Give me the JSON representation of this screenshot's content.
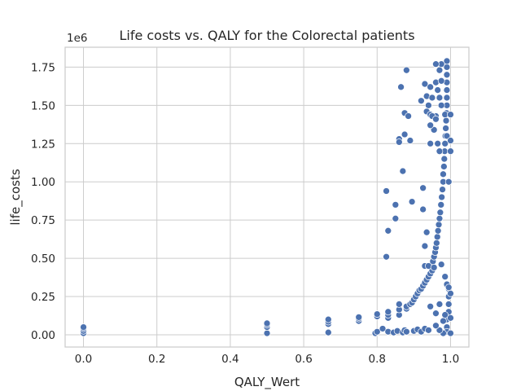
{
  "chart_data": {
    "type": "scatter",
    "title": "Life costs vs. QALY for the Colorectal patients",
    "xlabel": "QALY_Wert",
    "ylabel": "life_costs",
    "y_offset_label": "1e6",
    "xlim": [
      -0.05,
      1.05
    ],
    "ylim": [
      -80000,
      1880000
    ],
    "x_ticks": [
      0.0,
      0.2,
      0.4,
      0.6,
      0.8,
      1.0
    ],
    "x_tick_labels": [
      "0.0",
      "0.2",
      "0.4",
      "0.6",
      "0.8",
      "1.0"
    ],
    "y_ticks": [
      0,
      250000,
      500000,
      750000,
      1000000,
      1250000,
      1500000,
      1750000
    ],
    "y_tick_labels": [
      "0.00",
      "0.25",
      "0.50",
      "0.75",
      "1.00",
      "1.25",
      "1.50",
      "1.75"
    ],
    "grid": true,
    "color": "#4c72b0",
    "series": [
      {
        "points": [
          [
            0.0,
            10000
          ],
          [
            0.0,
            25000
          ],
          [
            0.0,
            40000
          ],
          [
            0.0,
            50000
          ],
          [
            0.5,
            10000
          ],
          [
            0.5,
            50000
          ],
          [
            0.5,
            65000
          ],
          [
            0.5,
            75000
          ],
          [
            0.667,
            15000
          ],
          [
            0.667,
            70000
          ],
          [
            0.667,
            85000
          ],
          [
            0.667,
            100000
          ],
          [
            0.75,
            90000
          ],
          [
            0.75,
            105000
          ],
          [
            0.75,
            115000
          ],
          [
            0.795,
            10000
          ],
          [
            0.8,
            20000
          ],
          [
            0.8,
            120000
          ],
          [
            0.8,
            135000
          ],
          [
            0.815,
            40000
          ],
          [
            0.83,
            20000
          ],
          [
            0.83,
            110000
          ],
          [
            0.83,
            130000
          ],
          [
            0.83,
            150000
          ],
          [
            0.845,
            15000
          ],
          [
            0.855,
            25000
          ],
          [
            0.86,
            130000
          ],
          [
            0.86,
            165000
          ],
          [
            0.86,
            200000
          ],
          [
            0.87,
            15000
          ],
          [
            0.875,
            30000
          ],
          [
            0.88,
            20000
          ],
          [
            0.88,
            170000
          ],
          [
            0.88,
            185000
          ],
          [
            0.89,
            200000
          ],
          [
            0.895,
            210000
          ],
          [
            0.9,
            25000
          ],
          [
            0.9,
            230000
          ],
          [
            0.905,
            250000
          ],
          [
            0.91,
            35000
          ],
          [
            0.91,
            270000
          ],
          [
            0.915,
            290000
          ],
          [
            0.92,
            20000
          ],
          [
            0.92,
            300000
          ],
          [
            0.925,
            320000
          ],
          [
            0.93,
            40000
          ],
          [
            0.93,
            340000
          ],
          [
            0.935,
            360000
          ],
          [
            0.94,
            30000
          ],
          [
            0.94,
            380000
          ],
          [
            0.945,
            400000
          ],
          [
            0.945,
            185000
          ],
          [
            0.95,
            420000
          ],
          [
            0.95,
            450000
          ],
          [
            0.952,
            480000
          ],
          [
            0.955,
            510000
          ],
          [
            0.958,
            540000
          ],
          [
            0.96,
            570000
          ],
          [
            0.962,
            600000
          ],
          [
            0.964,
            640000
          ],
          [
            0.966,
            680000
          ],
          [
            0.968,
            720000
          ],
          [
            0.97,
            760000
          ],
          [
            0.972,
            800000
          ],
          [
            0.974,
            850000
          ],
          [
            0.976,
            900000
          ],
          [
            0.978,
            950000
          ],
          [
            0.98,
            1000000
          ],
          [
            0.98,
            1050000
          ],
          [
            0.982,
            1100000
          ],
          [
            0.983,
            1150000
          ],
          [
            0.984,
            1200000
          ],
          [
            0.985,
            1250000
          ],
          [
            0.986,
            1300000
          ],
          [
            0.987,
            1350000
          ],
          [
            0.988,
            1400000
          ],
          [
            0.989,
            1450000
          ],
          [
            0.99,
            1500000
          ],
          [
            0.99,
            1550000
          ],
          [
            0.99,
            1600000
          ],
          [
            0.99,
            1650000
          ],
          [
            0.99,
            1700000
          ],
          [
            0.99,
            1750000
          ],
          [
            0.99,
            1790000
          ],
          [
            0.975,
            1770000
          ],
          [
            0.97,
            1730000
          ],
          [
            0.96,
            1650000
          ],
          [
            0.965,
            1600000
          ],
          [
            0.97,
            1550000
          ],
          [
            0.975,
            1500000
          ],
          [
            0.96,
            1430000
          ],
          [
            0.955,
            1340000
          ],
          [
            0.965,
            1250000
          ],
          [
            0.97,
            1200000
          ],
          [
            0.96,
            1770000
          ],
          [
            0.975,
            1660000
          ],
          [
            0.985,
            1440000
          ],
          [
            0.99,
            1300000
          ],
          [
            0.995,
            1000000
          ],
          [
            0.995,
            300000
          ],
          [
            0.995,
            250000
          ],
          [
            0.995,
            200000
          ],
          [
            0.995,
            150000
          ],
          [
            0.99,
            100000
          ],
          [
            0.99,
            50000
          ],
          [
            0.99,
            20000
          ],
          [
            0.98,
            10000
          ],
          [
            0.97,
            30000
          ],
          [
            0.96,
            60000
          ],
          [
            0.96,
            140000
          ],
          [
            0.97,
            200000
          ],
          [
            0.98,
            90000
          ],
          [
            0.985,
            130000
          ],
          [
            1.0,
            10000
          ],
          [
            1.0,
            110000
          ],
          [
            1.0,
            270000
          ],
          [
            1.0,
            1200000
          ],
          [
            1.0,
            1270000
          ],
          [
            1.0,
            1440000
          ],
          [
            0.99,
            330000
          ],
          [
            0.995,
            310000
          ],
          [
            0.975,
            460000
          ],
          [
            0.985,
            380000
          ],
          [
            0.88,
            1730000
          ],
          [
            0.865,
            1620000
          ],
          [
            0.93,
            1640000
          ],
          [
            0.945,
            1620000
          ],
          [
            0.935,
            1560000
          ],
          [
            0.95,
            1550000
          ],
          [
            0.92,
            1530000
          ],
          [
            0.94,
            1500000
          ],
          [
            0.935,
            1460000
          ],
          [
            0.945,
            1440000
          ],
          [
            0.875,
            1450000
          ],
          [
            0.885,
            1430000
          ],
          [
            0.95,
            1430000
          ],
          [
            0.96,
            1410000
          ],
          [
            0.945,
            1370000
          ],
          [
            0.875,
            1310000
          ],
          [
            0.86,
            1280000
          ],
          [
            0.86,
            1260000
          ],
          [
            0.89,
            1270000
          ],
          [
            0.945,
            1250000
          ],
          [
            0.87,
            1070000
          ],
          [
            0.925,
            960000
          ],
          [
            0.825,
            940000
          ],
          [
            0.895,
            870000
          ],
          [
            0.85,
            850000
          ],
          [
            0.925,
            820000
          ],
          [
            0.85,
            760000
          ],
          [
            0.83,
            680000
          ],
          [
            0.935,
            670000
          ],
          [
            0.93,
            580000
          ],
          [
            0.825,
            510000
          ],
          [
            0.93,
            450000
          ],
          [
            0.94,
            450000
          ],
          [
            0.955,
            440000
          ]
        ]
      }
    ]
  }
}
